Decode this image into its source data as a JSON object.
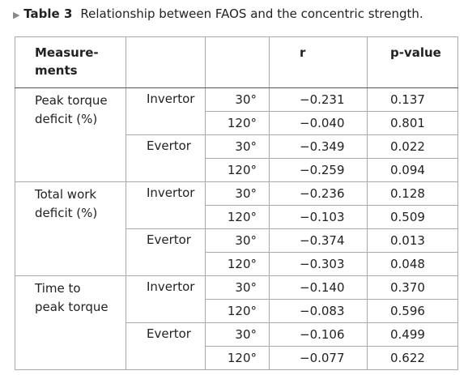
{
  "caption": {
    "label": "Table 3",
    "text": "Relationship between FAOS and the concentric strength."
  },
  "table": {
    "header": {
      "measurements": [
        "Measure-",
        "ments"
      ],
      "r": "r",
      "p": "p-value"
    },
    "groups": [
      {
        "measure": "Peak torque deficit (%)",
        "sides": [
          {
            "side": "Invertor",
            "rows": [
              {
                "angle": "30°",
                "r": "−0.231",
                "p": "0.137"
              },
              {
                "angle": "120°",
                "r": "−0.040",
                "p": "0.801"
              }
            ]
          },
          {
            "side": "Evertor",
            "rows": [
              {
                "angle": "30°",
                "r": "−0.349",
                "p": "0.022"
              },
              {
                "angle": "120°",
                "r": "−0.259",
                "p": "0.094"
              }
            ]
          }
        ]
      },
      {
        "measure": "Total work deficit (%)",
        "sides": [
          {
            "side": "Invertor",
            "rows": [
              {
                "angle": "30°",
                "r": "−0.236",
                "p": "0.128"
              },
              {
                "angle": "120°",
                "r": "−0.103",
                "p": "0.509"
              }
            ]
          },
          {
            "side": "Evertor",
            "rows": [
              {
                "angle": "30°",
                "r": "−0.374",
                "p": "0.013"
              },
              {
                "angle": "120°",
                "r": "−0.303",
                "p": "0.048"
              }
            ]
          }
        ]
      },
      {
        "measure": "Time to peak torque",
        "sides": [
          {
            "side": "Invertor",
            "rows": [
              {
                "angle": "30°",
                "r": "−0.140",
                "p": "0.370"
              },
              {
                "angle": "120°",
                "r": "−0.083",
                "p": "0.596"
              }
            ]
          },
          {
            "side": "Evertor",
            "rows": [
              {
                "angle": "30°",
                "r": "−0.106",
                "p": "0.499"
              },
              {
                "angle": "120°",
                "r": "−0.077",
                "p": "0.622"
              }
            ]
          }
        ]
      }
    ]
  }
}
